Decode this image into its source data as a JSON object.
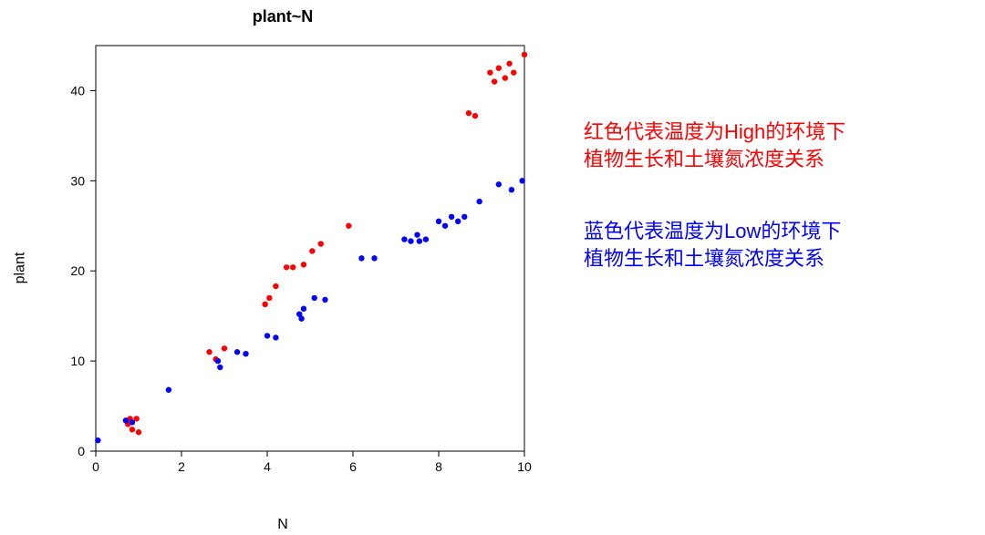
{
  "chart": {
    "type": "scatter",
    "title": "plant~N",
    "title_fontsize": 18,
    "title_fontweight": "bold",
    "xlabel": "N",
    "ylabel": "plant",
    "label_fontsize": 16,
    "xlim": [
      0,
      10
    ],
    "ylim": [
      0,
      45
    ],
    "xtick_step": 2,
    "ytick_step": 10,
    "xticks": [
      0,
      2,
      4,
      6,
      8,
      10
    ],
    "yticks": [
      0,
      10,
      20,
      30,
      40
    ],
    "background_color": "#ffffff",
    "box_color": "#000000",
    "box_width": 1,
    "tick_length": 6,
    "marker_radius": 3.2,
    "series": [
      {
        "name": "High",
        "color": "#ff0000",
        "points": [
          [
            0.75,
            3.0
          ],
          [
            0.8,
            3.6
          ],
          [
            0.95,
            3.6
          ],
          [
            0.85,
            2.4
          ],
          [
            1.0,
            2.1
          ],
          [
            2.65,
            11.0
          ],
          [
            2.8,
            10.2
          ],
          [
            3.0,
            11.4
          ],
          [
            3.95,
            16.3
          ],
          [
            4.05,
            17.0
          ],
          [
            4.2,
            18.3
          ],
          [
            4.45,
            20.4
          ],
          [
            4.6,
            20.4
          ],
          [
            4.85,
            20.7
          ],
          [
            5.05,
            22.2
          ],
          [
            5.25,
            23.0
          ],
          [
            5.9,
            25.0
          ],
          [
            8.7,
            37.5
          ],
          [
            8.85,
            37.2
          ],
          [
            9.2,
            42.0
          ],
          [
            9.3,
            41.0
          ],
          [
            9.4,
            42.5
          ],
          [
            9.55,
            41.4
          ],
          [
            9.65,
            43.0
          ],
          [
            9.75,
            42.0
          ],
          [
            10.0,
            44.0
          ]
        ]
      },
      {
        "name": "Low",
        "color": "#0000ff",
        "points": [
          [
            0.05,
            1.2
          ],
          [
            0.7,
            3.4
          ],
          [
            0.85,
            3.2
          ],
          [
            1.7,
            6.8
          ],
          [
            2.85,
            10.0
          ],
          [
            2.9,
            9.3
          ],
          [
            3.3,
            11.0
          ],
          [
            3.5,
            10.8
          ],
          [
            4.0,
            12.8
          ],
          [
            4.2,
            12.6
          ],
          [
            4.75,
            15.2
          ],
          [
            4.85,
            15.8
          ],
          [
            4.8,
            14.7
          ],
          [
            5.1,
            17.0
          ],
          [
            5.35,
            16.8
          ],
          [
            6.2,
            21.4
          ],
          [
            6.5,
            21.4
          ],
          [
            7.2,
            23.5
          ],
          [
            7.35,
            23.3
          ],
          [
            7.5,
            24.0
          ],
          [
            7.55,
            23.3
          ],
          [
            7.7,
            23.5
          ],
          [
            8.0,
            25.5
          ],
          [
            8.15,
            25.0
          ],
          [
            8.3,
            26.0
          ],
          [
            8.45,
            25.5
          ],
          [
            8.6,
            26.0
          ],
          [
            8.95,
            27.7
          ],
          [
            9.4,
            29.6
          ],
          [
            9.7,
            29.0
          ],
          [
            9.95,
            30.0
          ]
        ]
      }
    ]
  },
  "annotations": {
    "fontsize": 22,
    "red": {
      "color": "#ff0000",
      "line1": "红色代表温度为High的环境下",
      "line2": "植物生长和土壤氮浓度关系"
    },
    "blue": {
      "color": "#0000ff",
      "line1": "蓝色代表温度为Low的环境下",
      "line2": "植物生长和土壤氮浓度关系"
    }
  }
}
